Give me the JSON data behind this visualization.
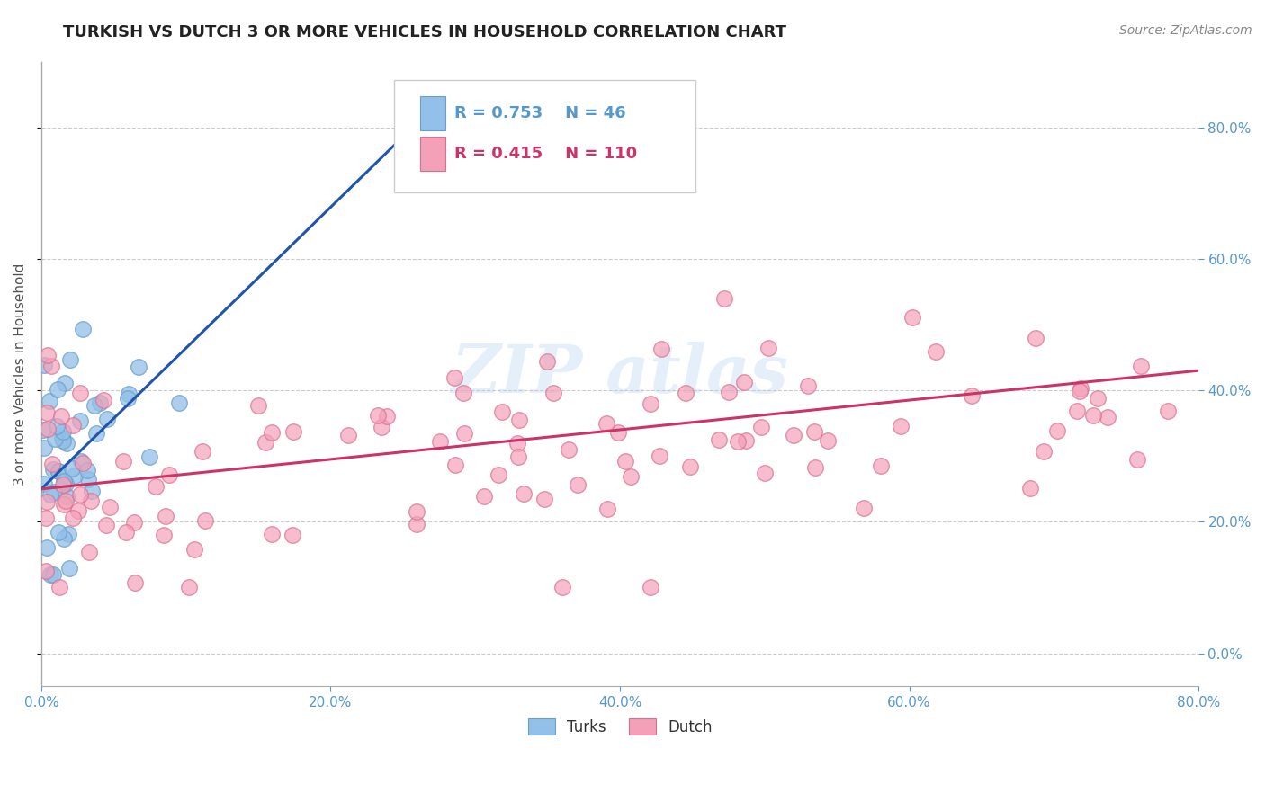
{
  "title": "TURKISH VS DUTCH 3 OR MORE VEHICLES IN HOUSEHOLD CORRELATION CHART",
  "source_text": "Source: ZipAtlas.com",
  "ylabel": "3 or more Vehicles in Household",
  "xmin": 0.0,
  "xmax": 80.0,
  "ymin": -5.0,
  "ymax": 90.0,
  "yticks": [
    0,
    20,
    40,
    60,
    80
  ],
  "xticks": [
    0,
    20,
    40,
    60,
    80
  ],
  "watermark": "ZIPAtlas",
  "blue_color": "#92C0E8",
  "pink_color": "#F4A0B8",
  "blue_edge_color": "#6A9FCC",
  "pink_edge_color": "#D97090",
  "blue_line_color": "#2255AA",
  "pink_line_color": "#CC3366",
  "tick_color": "#5599CC",
  "legend_r_blue": "R = 0.753",
  "legend_n_blue": "N = 46",
  "legend_r_pink": "R = 0.415",
  "legend_n_pink": "N = 110",
  "legend_label_blue": "Turks",
  "legend_label_pink": "Dutch",
  "title_fontsize": 13,
  "axis_label_fontsize": 11,
  "tick_fontsize": 11,
  "source_fontsize": 10,
  "legend_fontsize": 13
}
